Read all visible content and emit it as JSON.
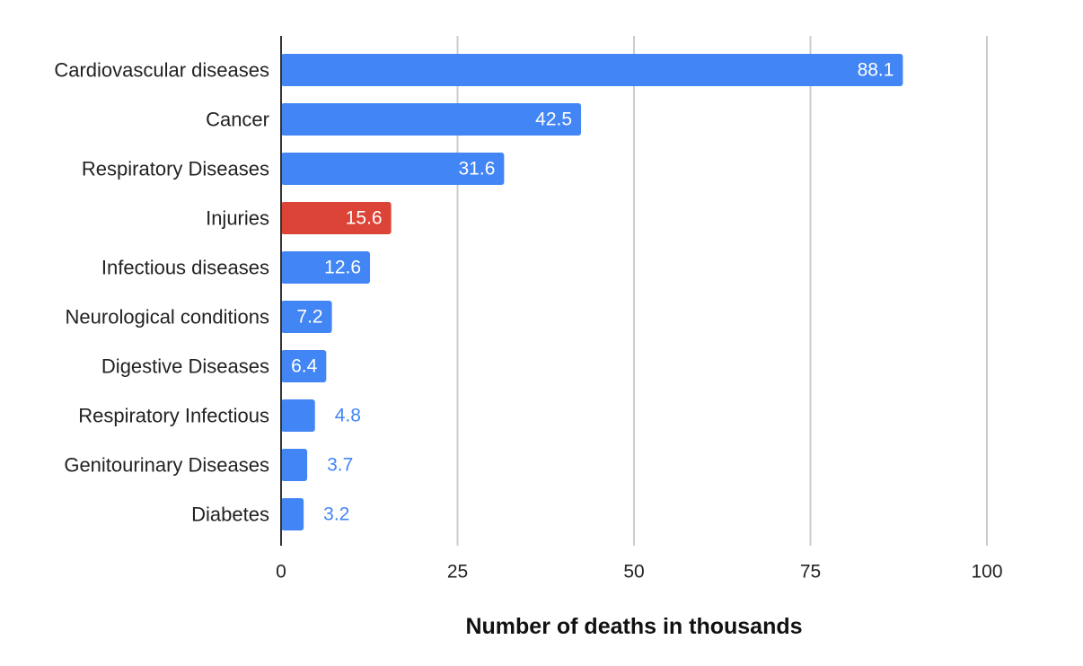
{
  "chart_data": {
    "type": "bar",
    "orientation": "horizontal",
    "title": "",
    "xlabel": "Number of deaths in thousands",
    "ylabel": "",
    "categories": [
      "Cardiovascular diseases",
      "Cancer",
      "Respiratory Diseases",
      "Injuries",
      "Infectious diseases",
      "Neurological conditions",
      "Digestive Diseases",
      "Respiratory Infectious",
      "Genitourinary Diseases",
      "Diabetes"
    ],
    "values": [
      88.1,
      42.5,
      31.6,
      15.6,
      12.6,
      7.2,
      6.4,
      4.8,
      3.7,
      3.2
    ],
    "value_labels": [
      "88.1",
      "42.5",
      "31.6",
      "15.6",
      "12.6",
      "7.2",
      "6.4",
      "4.8",
      "3.7",
      "3.2"
    ],
    "xlim": [
      0,
      100
    ],
    "xticks": [
      0,
      25,
      50,
      75,
      100
    ],
    "xtick_labels": [
      "0",
      "25",
      "50",
      "75",
      "100"
    ],
    "grid": "vertical",
    "legend": "none",
    "colors": {
      "default_bar": "#4285f4",
      "highlight_bar": "#db4437",
      "highlight_index": 3,
      "label_inside": "#ffffff",
      "label_outside": "#4285f4",
      "grid": "#cccccc",
      "axis": "#333333"
    }
  }
}
